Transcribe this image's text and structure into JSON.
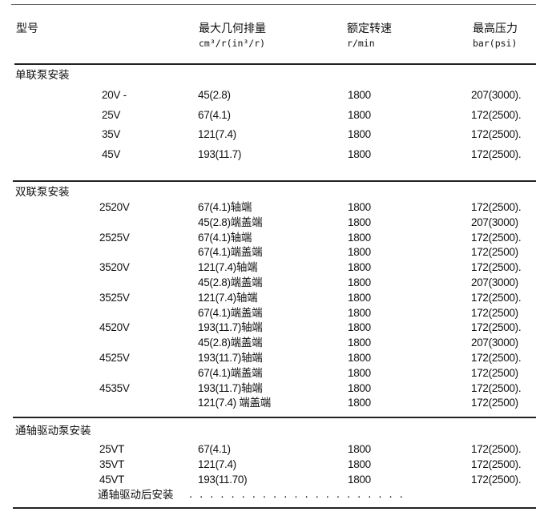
{
  "header": {
    "model": "型号",
    "displacement": "最大几何排量",
    "displacement_unit": "cm³/r(in³/r)",
    "speed": "额定转速",
    "speed_unit": "r/min",
    "pressure": "最高压力",
    "pressure_unit": "bar(psi)"
  },
  "sections": [
    {
      "title": "单联泵安装",
      "rows": [
        {
          "model": "20V -",
          "disp": "45(2.8)",
          "speed": "1800",
          "pressure": "207(3000)."
        },
        {
          "model": "25V",
          "disp": "67(4.1)",
          "speed": "1800",
          "pressure": "172(2500)."
        },
        {
          "model": "35V",
          "disp": "121(7.4)",
          "speed": "1800",
          "pressure": "172(2500)."
        },
        {
          "model": "45V",
          "disp": " 193(11.7)",
          "speed": "1800",
          "pressure": "172(2500)."
        }
      ]
    },
    {
      "title": "双联泵安装",
      "rows": [
        {
          "model": "2520V",
          "disp": "67(4.1)轴端",
          "speed": "1800",
          "pressure": "172(2500)."
        },
        {
          "model": "",
          "disp": "45(2.8)端盖端",
          "speed": "1800",
          "pressure": "207(3000)"
        },
        {
          "model": "2525V",
          "disp": "67(4.1)轴端",
          "speed": "1800",
          "pressure": "172(2500)."
        },
        {
          "model": "",
          "disp": "67(4.1)端盖端",
          "speed": "1800",
          "pressure": "172(2500)"
        },
        {
          "model": "3520V",
          "disp": "121(7.4)轴端",
          "speed": "1800",
          "pressure": "172(2500)."
        },
        {
          "model": "",
          "disp": "45(2.8)端盖端",
          "speed": "1800",
          "pressure": "207(3000)"
        },
        {
          "model": "3525V",
          "disp": "121(7.4)轴端",
          "speed": "1800",
          "pressure": "172(2500)."
        },
        {
          "model": "",
          "disp": "67(4.1)端盖端",
          "speed": "1800",
          "pressure": "172(2500)"
        },
        {
          "model": "4520V",
          "disp": "193(11.7)轴端",
          "speed": "1800",
          "pressure": "172(2500)."
        },
        {
          "model": "",
          "disp": "45(2.8)端盖端",
          "speed": "1800",
          "pressure": "207(3000)"
        },
        {
          "model": "4525V",
          "disp": "193(11.7)轴端",
          "speed": "1800",
          "pressure": "172(2500)."
        },
        {
          "model": "",
          "disp": "67(4.1)端盖端",
          "speed": "1800",
          "pressure": "172(2500)"
        },
        {
          "model": "4535V",
          "disp": "193(11.7)轴端",
          "speed": "1800",
          "pressure": "172(2500)."
        },
        {
          "model": "",
          "disp": "121(7.4) 端盖端",
          "speed": "1800",
          "pressure": "172(2500)"
        }
      ]
    },
    {
      "title": "通轴驱动泵安装",
      "rows": [
        {
          "model": "25VT",
          "disp": "67(4.1)",
          "speed": "1800",
          "pressure": "172(2500)."
        },
        {
          "model": "35VT",
          "disp": "121(7.4)",
          "speed": "1800",
          "pressure": "172(2500)."
        },
        {
          "model": "45VT",
          "disp": "193(11.70)",
          "speed": "1800",
          "pressure": "172(2500)."
        }
      ],
      "footer": "通轴驱动后安装",
      "footer_leader": "....................."
    }
  ]
}
